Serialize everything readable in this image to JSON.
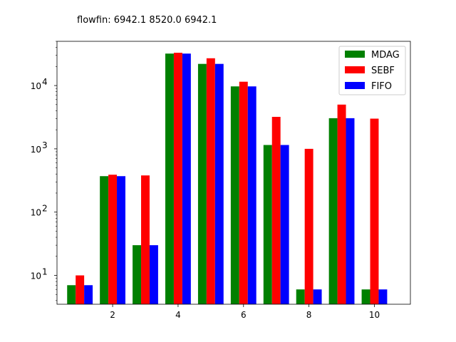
{
  "chart_data": {
    "type": "bar",
    "title": "flowfin: 6942.1 8520.0 6942.1",
    "xlabel": "",
    "ylabel": "",
    "yscale": "log",
    "ylim": [
      3.5,
      50000
    ],
    "xlim": [
      0.3,
      11.1
    ],
    "x": [
      1,
      2,
      3,
      4,
      5,
      6,
      7,
      8,
      9,
      10
    ],
    "xticks": [
      2,
      4,
      6,
      8,
      10
    ],
    "xtick_labels": [
      "2",
      "4",
      "6",
      "8",
      "10"
    ],
    "yticks": [
      10,
      100,
      1000,
      10000
    ],
    "ytick_labels": [
      {
        "base": "10",
        "exp": "1"
      },
      {
        "base": "10",
        "exp": "2"
      },
      {
        "base": "10",
        "exp": "3"
      },
      {
        "base": "10",
        "exp": "4"
      }
    ],
    "grid": false,
    "legend": "top-right",
    "series": [
      {
        "name": "MDAG",
        "color": "#008000",
        "values": [
          7,
          370,
          30,
          32000,
          22000,
          9700,
          1150,
          6,
          3050,
          6
        ]
      },
      {
        "name": "SEBF",
        "color": "#ff0000",
        "values": [
          10,
          390,
          380,
          33000,
          27000,
          11500,
          3200,
          1000,
          5000,
          3000
        ]
      },
      {
        "name": "FIFO",
        "color": "#0000ff",
        "values": [
          7,
          370,
          30,
          32000,
          22000,
          9700,
          1150,
          6,
          3050,
          6
        ]
      }
    ]
  }
}
